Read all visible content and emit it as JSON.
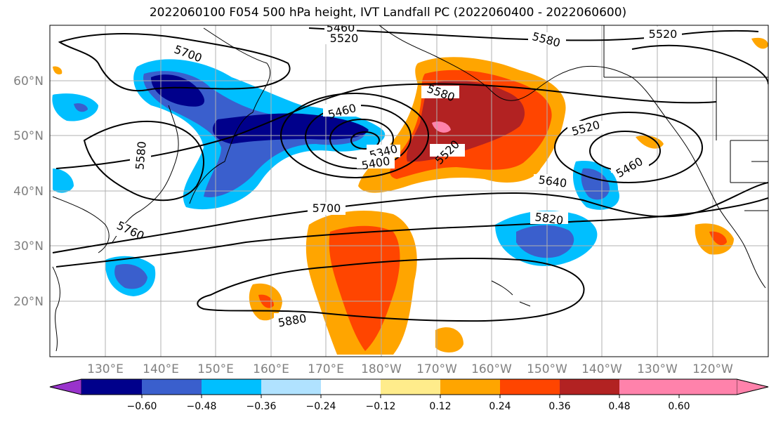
{
  "title": "2022060100 F054 500 hPa height, IVT Landfall PC (2022060400 - 2022060600)",
  "lat_labels": [
    "60°N",
    "50°N",
    "40°N",
    "30°N",
    "20°N"
  ],
  "lon_labels": [
    "130°E",
    "140°E",
    "150°E",
    "160°E",
    "170°E",
    "180°W",
    "170°W",
    "160°W",
    "150°W",
    "140°W",
    "130°W",
    "120°W"
  ],
  "colorbar": {
    "ticks": [
      "−0.60",
      "−0.48",
      "−0.36",
      "−0.24",
      "−0.12",
      "0.12",
      "0.24",
      "0.36",
      "0.48",
      "0.60"
    ],
    "colors": [
      "#9933cc",
      "#00008b",
      "#3a5fcd",
      "#00bfff",
      "#b0e2ff",
      "#ffffff",
      "#ffec8b",
      "#ffa500",
      "#ff4500",
      "#b22222",
      "#ff82ab"
    ]
  },
  "contour_labels": [
    "5460",
    "5520",
    "5580",
    "5520",
    "5700",
    "5580",
    "5460",
    "5580",
    "5520",
    "5640",
    "5460",
    "5340",
    "5400",
    "5520",
    "5700",
    "5820",
    "5760",
    "5880"
  ]
}
